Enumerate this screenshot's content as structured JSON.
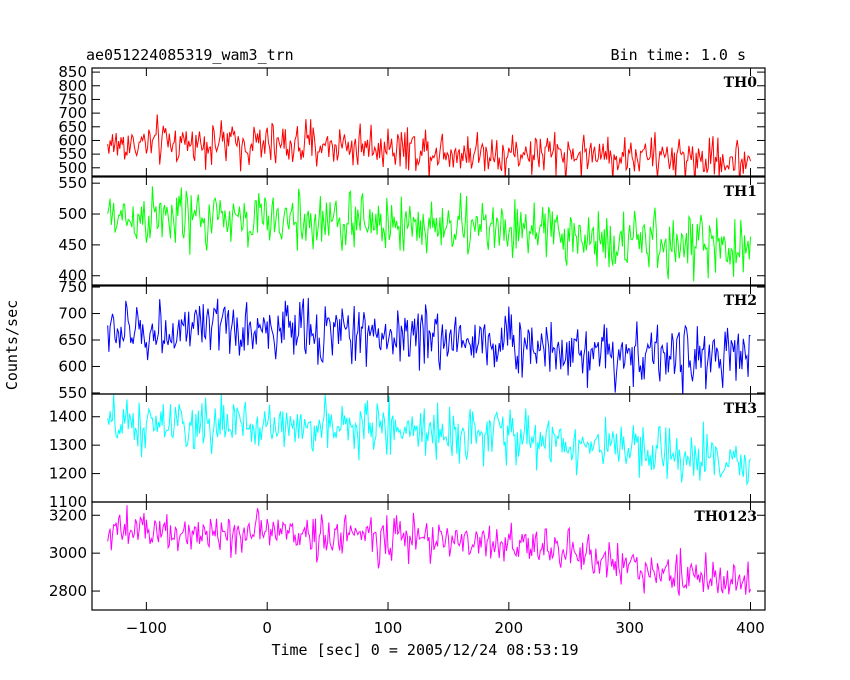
{
  "header": {
    "title": "ae051224085319_wam3_trn",
    "bin_time": "Bin time: 1.0 s"
  },
  "axis": {
    "xlabel": "Time [sec] 0 = 2005/12/24 08:53:19",
    "ylabel": "Counts/sec"
  },
  "chart_data": {
    "type": "line",
    "title": "ae051224085319_wam3_trn",
    "xlabel": "Time [sec] 0 = 2005/12/24 08:53:19",
    "ylabel": "Counts/sec",
    "xlim": [
      -145,
      412
    ],
    "x_ticks": [
      -100,
      0,
      100,
      200,
      300,
      400
    ],
    "x_tick_labels": [
      "−100",
      "0",
      "100",
      "200",
      "300",
      "400"
    ],
    "grid": false,
    "x_range": [
      -132,
      400
    ],
    "panels": [
      {
        "name": "TH0",
        "color": "#ff0000",
        "ylim": [
          470,
          865
        ],
        "y_ticks": [
          500,
          550,
          600,
          650,
          700,
          750,
          800,
          850
        ],
        "y_tick_labels": [
          "500",
          "550",
          "600",
          "650",
          "700",
          "750",
          "800",
          "850"
        ],
        "trend_x": [
          -130,
          -50,
          0,
          100,
          170,
          200,
          300,
          400
        ],
        "trend_y": [
          585,
          595,
          585,
          580,
          555,
          555,
          545,
          525
        ],
        "noise_sd": 40
      },
      {
        "name": "TH1",
        "color": "#00ff00",
        "ylim": [
          385,
          560
        ],
        "y_ticks": [
          400,
          450,
          500,
          550
        ],
        "y_tick_labels": [
          "400",
          "450",
          "500",
          "550"
        ],
        "trend_x": [
          -130,
          0,
          100,
          200,
          300,
          400
        ],
        "trend_y": [
          495,
          490,
          485,
          475,
          455,
          445
        ],
        "noise_sd": 24
      },
      {
        "name": "TH2",
        "color": "#0000ff",
        "ylim": [
          548,
          752
        ],
        "y_ticks": [
          550,
          600,
          650,
          700,
          750
        ],
        "y_tick_labels": [
          "550",
          "600",
          "650",
          "700",
          "750"
        ],
        "trend_x": [
          -130,
          0,
          100,
          200,
          300,
          400
        ],
        "trend_y": [
          665,
          670,
          662,
          645,
          625,
          615
        ],
        "noise_sd": 28
      },
      {
        "name": "TH3",
        "color": "#00ffff",
        "ylim": [
          1100,
          1480
        ],
        "y_ticks": [
          1100,
          1200,
          1300,
          1400
        ],
        "y_tick_labels": [
          "1100",
          "1200",
          "1300",
          "1400"
        ],
        "trend_x": [
          -130,
          0,
          100,
          200,
          300,
          400
        ],
        "trend_y": [
          1365,
          1370,
          1360,
          1335,
          1280,
          1225
        ],
        "noise_sd": 45
      },
      {
        "name": "TH0123",
        "color": "#ff00ff",
        "ylim": [
          2700,
          3270
        ],
        "y_ticks": [
          2800,
          3000,
          3200
        ],
        "y_tick_labels": [
          "2800",
          "3000",
          "3200"
        ],
        "trend_x": [
          -130,
          0,
          100,
          200,
          250,
          300,
          400
        ],
        "trend_y": [
          3110,
          3110,
          3085,
          3050,
          3010,
          2930,
          2830
        ],
        "noise_sd": 55
      }
    ]
  }
}
